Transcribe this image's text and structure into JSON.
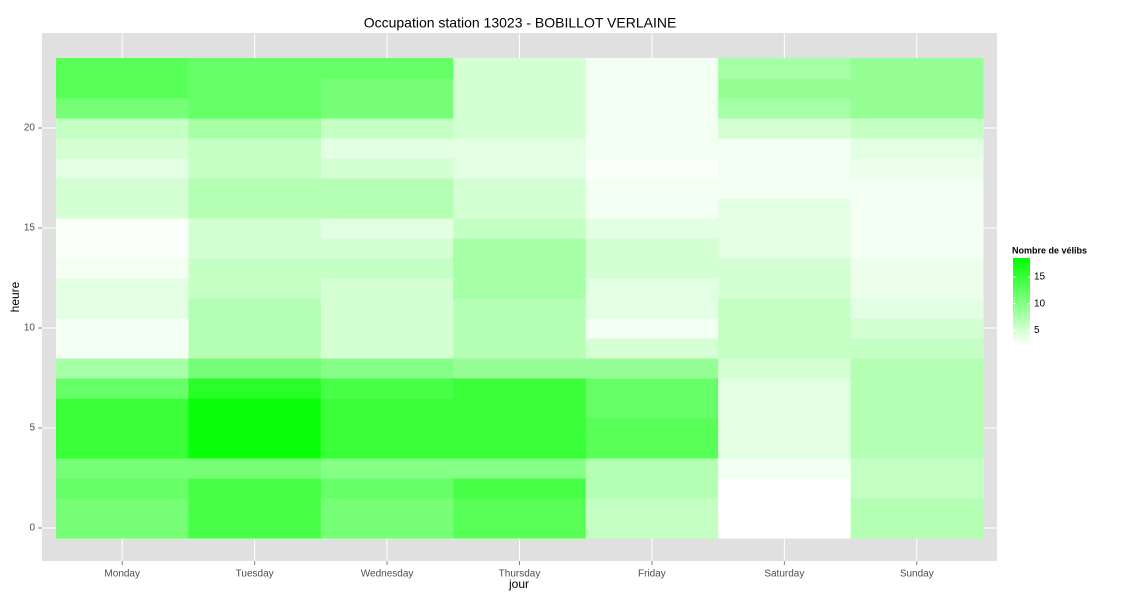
{
  "chart_data": {
    "type": "heatmap",
    "title": "Occupation station 13023 - BOBILLOT VERLAINE",
    "x_label": "jour",
    "y_label": "heure",
    "categories": [
      "Monday",
      "Tuesday",
      "Wednesday",
      "Thursday",
      "Friday",
      "Saturday",
      "Sunday"
    ],
    "y": [
      0,
      1,
      2,
      3,
      4,
      5,
      6,
      7,
      8,
      9,
      10,
      11,
      12,
      13,
      14,
      15,
      16,
      17,
      18,
      19,
      20,
      21,
      22,
      23
    ],
    "values": [
      [
        11,
        11,
        12,
        11,
        15,
        15,
        15,
        12,
        8,
        3,
        3,
        4,
        4,
        3,
        2.5,
        2.5,
        5,
        5,
        4,
        5,
        6,
        11,
        13,
        13
      ],
      [
        14,
        14,
        14,
        11,
        18,
        18,
        18,
        16,
        11,
        7,
        7,
        7,
        6,
        6,
        5,
        5,
        7,
        7,
        6,
        6,
        8,
        12,
        12,
        12
      ],
      [
        11,
        11,
        12,
        10,
        15,
        15,
        15,
        14,
        10,
        5,
        5,
        5,
        5,
        6,
        5,
        4,
        7,
        7,
        5,
        4,
        6,
        11,
        11,
        12
      ],
      [
        13,
        13,
        14,
        10,
        15,
        15,
        15,
        15,
        9,
        7,
        7,
        7,
        8,
        8,
        8,
        6,
        5,
        5,
        4,
        4,
        5,
        5,
        5,
        5
      ],
      [
        6,
        6,
        7,
        7,
        13,
        13,
        12,
        12,
        9,
        5,
        3,
        4,
        4,
        5,
        5,
        4,
        3,
        3,
        2.5,
        3,
        3,
        3,
        3,
        3
      ],
      [
        2.2,
        2.2,
        2.2,
        3,
        4,
        4,
        4,
        4,
        5,
        6,
        6,
        6,
        5,
        5,
        4,
        4,
        4,
        3,
        3,
        3,
        5,
        8,
        9,
        8
      ],
      [
        7,
        7,
        6,
        6,
        7,
        7,
        7,
        7,
        7,
        6,
        5,
        4,
        3.5,
        3.5,
        3,
        3,
        3,
        3,
        3.5,
        4,
        6,
        9,
        9,
        9
      ]
    ],
    "ylim": [
      -1.65,
      24.75
    ],
    "yticks": [
      0,
      5,
      10,
      15,
      20
    ],
    "grid": true,
    "legend_title": "Nombre de vélibs",
    "legend_position": "right",
    "color_low": "#ffffff",
    "color_high": "#00ff00",
    "clim": [
      2.2,
      18.6
    ],
    "cticks": [
      5,
      10,
      15
    ]
  }
}
